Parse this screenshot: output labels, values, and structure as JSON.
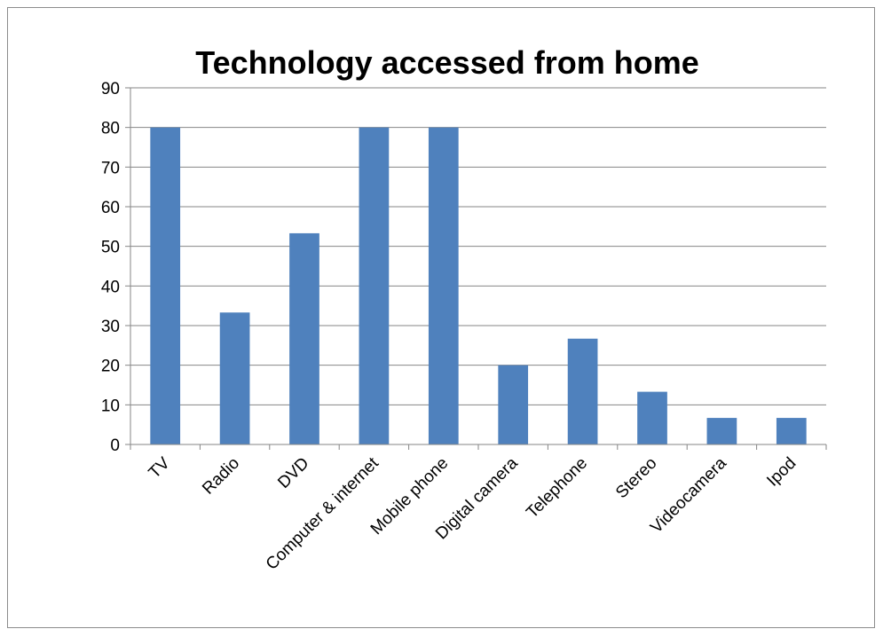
{
  "chart_data": {
    "type": "bar",
    "title": "Technology accessed from home",
    "xlabel": "",
    "ylabel": "",
    "categories": [
      "TV",
      "Radio",
      "DVD",
      "Computer & internet",
      "Mobile phone",
      "Digital camera",
      "Telephone",
      "Stereo",
      "Videocamera",
      "Ipod"
    ],
    "values": [
      80,
      33.3,
      53.3,
      80,
      80,
      20,
      26.7,
      13.3,
      6.7,
      6.7
    ],
    "ylim": [
      0,
      90
    ],
    "yticks": [
      0,
      10,
      20,
      30,
      40,
      50,
      60,
      70,
      80,
      90
    ],
    "grid": true,
    "legend": "none",
    "bar_color": "#4f81bd",
    "grid_color": "#868686"
  }
}
